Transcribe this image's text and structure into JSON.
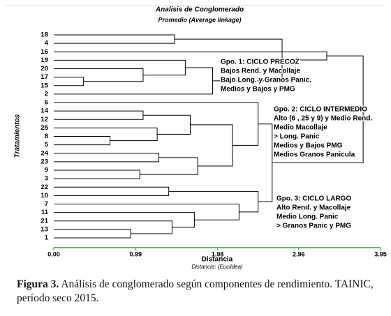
{
  "chart_data": {
    "type": "dendrogram",
    "title": "Analisis de Conglomerado",
    "subtitle": "Promedio (Average linkage)",
    "y_label": "Tratamientos",
    "x_label": "Distancia",
    "x_sublabel": "Distancia: (Euclidea)",
    "leaves": [
      "18",
      "4",
      "16",
      "19",
      "20",
      "17",
      "15",
      "2",
      "6",
      "14",
      "12",
      "25",
      "8",
      "5",
      "24",
      "23",
      "9",
      "3",
      "22",
      "10",
      "7",
      "11",
      "21",
      "13",
      "1"
    ],
    "merges": [
      {
        "children": [
          0,
          1
        ],
        "height": 1.46
      },
      {
        "children": [
          5,
          6
        ],
        "height": 0.36
      },
      {
        "children": [
          4,
          26
        ],
        "height": 1.08
      },
      {
        "children": [
          3,
          27
        ],
        "height": 1.59
      },
      {
        "children": [
          28,
          7
        ],
        "height": 1.92
      },
      {
        "children": [
          25,
          29
        ],
        "height": 2.76
      },
      {
        "children": [
          9,
          10
        ],
        "height": 1.08
      },
      {
        "children": [
          12,
          13
        ],
        "height": 0.68
      },
      {
        "children": [
          11,
          32
        ],
        "height": 1.25
      },
      {
        "children": [
          31,
          33
        ],
        "height": 1.65
      },
      {
        "children": [
          14,
          15
        ],
        "height": 1.27
      },
      {
        "children": [
          16,
          17
        ],
        "height": 1.04
      },
      {
        "children": [
          35,
          36
        ],
        "height": 1.74
      },
      {
        "children": [
          34,
          37
        ],
        "height": 2.16
      },
      {
        "children": [
          8,
          38
        ],
        "height": 2.47
      },
      {
        "children": [
          18,
          19
        ],
        "height": 1.39
      },
      {
        "children": [
          23,
          24
        ],
        "height": 0.93
      },
      {
        "children": [
          22,
          41
        ],
        "height": 1.43
      },
      {
        "children": [
          21,
          42
        ],
        "height": 1.7
      },
      {
        "children": [
          20,
          43
        ],
        "height": 2.24
      },
      {
        "children": [
          40,
          44
        ],
        "height": 2.47
      },
      {
        "children": [
          39,
          45
        ],
        "height": 2.64
      },
      {
        "children": [
          2,
          30
        ],
        "height": 3.3
      },
      {
        "children": [
          47,
          46
        ],
        "height": 3.74
      }
    ],
    "xlim": [
      0,
      3.95
    ],
    "xticks": [
      {
        "value": 0,
        "label": "0.00"
      },
      0.99,
      1.98,
      2.96,
      3.95
    ],
    "axis_color": "#2ca02c",
    "annotations": [
      {
        "lines": [
          "Gpo. 1: CICLO PRECOZ",
          "Bajos Rend. y Macollaje",
          "Bajo Long. y Granos Panic.",
          "Medios y Bajos y PMG"
        ]
      },
      {
        "lines": [
          "Gpo. 2: CICLO INTERMEDIO",
          "Alto (6 , 25 y 9) y Medio Rend.",
          "Medio Macollaje",
          "> Long. Panic",
          "Medios y Bajos PMG",
          "Medios Granos Panicula"
        ]
      },
      {
        "lines": [
          "Gpo. 3: CICLO LARGO",
          "Alto Rend. y Macollaje",
          "Medio Long. Panic",
          "> Granos Panic y PMG"
        ]
      }
    ]
  },
  "caption": {
    "label": "Figura 3.",
    "text": "Análisis de conglomerado según componentes de rendimiento. TAINIC, período seco 2015."
  }
}
